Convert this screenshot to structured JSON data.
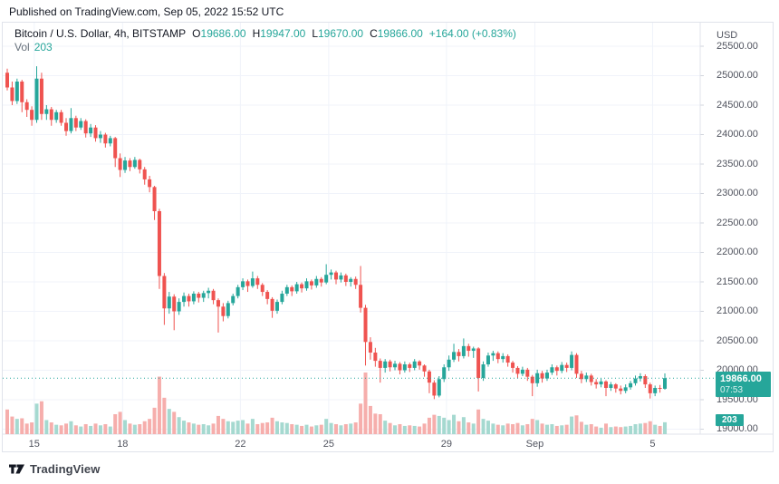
{
  "header": {
    "published": "Published on TradingView.com, Sep 05, 2022 15:52 UTC"
  },
  "legend": {
    "symbol": "Bitcoin / U.S. Dollar, 4h, BITSTAMP",
    "open_label": "O",
    "open": "19686.00",
    "high_label": "H",
    "high": "19947.00",
    "low_label": "L",
    "low": "19670.00",
    "close_label": "C",
    "close": "19866.00",
    "change": "+164.00 (+0.83%)",
    "vol_label": "Vol",
    "vol": "203"
  },
  "price_axis": {
    "unit": "USD",
    "last_price": "19866.00",
    "countdown": "07:53",
    "last_volume": "203"
  },
  "footer": {
    "brand": "TradingView"
  },
  "colors": {
    "up": "#26a69a",
    "down": "#ef5350",
    "vol_up": "#a5d9d0",
    "vol_down": "#f6aeac",
    "grid": "#f0f3fa",
    "border": "#e0e3eb",
    "tick": "#d1d4dc",
    "axis_text": "#50535e",
    "last_line": "#26a69a"
  },
  "chart_data": {
    "type": "candlestick",
    "title": "Bitcoin / U.S. Dollar",
    "exchange": "BITSTAMP",
    "interval": "4h",
    "unit": "USD",
    "ylim": [
      19000,
      25500
    ],
    "y_step": 500,
    "grid": true,
    "last_price": 19866.0,
    "last_volume": 203,
    "x_ticks": [
      {
        "index": 6,
        "label": "15"
      },
      {
        "index": 24,
        "label": "18"
      },
      {
        "index": 48,
        "label": "22"
      },
      {
        "index": 66,
        "label": "25"
      },
      {
        "index": 90,
        "label": "29"
      },
      {
        "index": 108,
        "label": "Sep"
      },
      {
        "index": 132,
        "label": "5"
      }
    ],
    "candles_format": [
      "open",
      "high",
      "low",
      "close",
      "volume"
    ],
    "candles": [
      [
        25050,
        25120,
        24750,
        24800,
        420
      ],
      [
        24800,
        24900,
        24500,
        24570,
        300
      ],
      [
        24570,
        24950,
        24520,
        24900,
        260
      ],
      [
        24900,
        24930,
        24380,
        24550,
        270
      ],
      [
        24550,
        24600,
        24300,
        24420,
        180
      ],
      [
        24420,
        24480,
        24150,
        24250,
        200
      ],
      [
        24250,
        25160,
        24200,
        24950,
        520
      ],
      [
        24950,
        25050,
        24250,
        24350,
        560
      ],
      [
        24350,
        24500,
        24250,
        24430,
        240
      ],
      [
        24430,
        24470,
        24150,
        24250,
        200
      ],
      [
        24250,
        24420,
        24200,
        24380,
        160
      ],
      [
        24380,
        24420,
        24150,
        24200,
        150
      ],
      [
        24200,
        24280,
        23980,
        24060,
        180
      ],
      [
        24060,
        24450,
        24020,
        24280,
        220
      ],
      [
        24280,
        24320,
        24060,
        24120,
        150
      ],
      [
        24120,
        24280,
        24080,
        24230,
        130
      ],
      [
        24230,
        24260,
        23950,
        24020,
        170
      ],
      [
        24020,
        24180,
        23960,
        24120,
        140
      ],
      [
        24120,
        24160,
        23880,
        23940,
        180
      ],
      [
        23940,
        24060,
        23860,
        24000,
        150
      ],
      [
        24000,
        24030,
        23780,
        23850,
        170
      ],
      [
        23850,
        23980,
        23800,
        23940,
        130
      ],
      [
        23940,
        23960,
        23450,
        23600,
        340
      ],
      [
        23600,
        23680,
        23280,
        23400,
        380
      ],
      [
        23400,
        23620,
        23350,
        23560,
        240
      ],
      [
        23560,
        23600,
        23380,
        23450,
        180
      ],
      [
        23450,
        23620,
        23420,
        23570,
        160
      ],
      [
        23570,
        23590,
        23340,
        23410,
        170
      ],
      [
        23410,
        23450,
        23150,
        23240,
        220
      ],
      [
        23240,
        23300,
        23020,
        23110,
        260
      ],
      [
        23110,
        23130,
        22550,
        22700,
        450
      ],
      [
        22700,
        22740,
        21380,
        21600,
        980
      ],
      [
        21600,
        21650,
        20770,
        21050,
        620
      ],
      [
        21050,
        21330,
        20960,
        21250,
        430
      ],
      [
        21250,
        21290,
        20680,
        21000,
        380
      ],
      [
        21000,
        21220,
        20940,
        21160,
        290
      ],
      [
        21160,
        21320,
        21080,
        21260,
        230
      ],
      [
        21260,
        21300,
        21080,
        21170,
        200
      ],
      [
        21170,
        21340,
        21120,
        21300,
        180
      ],
      [
        21300,
        21330,
        21150,
        21230,
        160
      ],
      [
        21230,
        21350,
        21160,
        21310,
        170
      ],
      [
        21310,
        21400,
        21220,
        21350,
        150
      ],
      [
        21350,
        21380,
        21120,
        21190,
        180
      ],
      [
        21190,
        21220,
        20640,
        21080,
        310
      ],
      [
        21080,
        21140,
        20830,
        20920,
        260
      ],
      [
        20920,
        21180,
        20880,
        21140,
        220
      ],
      [
        21140,
        21300,
        21100,
        21260,
        210
      ],
      [
        21260,
        21450,
        21220,
        21410,
        230
      ],
      [
        21410,
        21560,
        21360,
        21510,
        240
      ],
      [
        21510,
        21540,
        21330,
        21430,
        180
      ],
      [
        21430,
        21675,
        21400,
        21560,
        260
      ],
      [
        21560,
        21600,
        21380,
        21450,
        170
      ],
      [
        21450,
        21480,
        21260,
        21330,
        190
      ],
      [
        21330,
        21360,
        21120,
        21210,
        200
      ],
      [
        21210,
        21240,
        20890,
        21010,
        280
      ],
      [
        21010,
        21200,
        20960,
        21160,
        220
      ],
      [
        21160,
        21350,
        21120,
        21300,
        200
      ],
      [
        21300,
        21450,
        21260,
        21410,
        190
      ],
      [
        21410,
        21440,
        21260,
        21340,
        170
      ],
      [
        21340,
        21500,
        21300,
        21460,
        160
      ],
      [
        21460,
        21490,
        21320,
        21390,
        140
      ],
      [
        21390,
        21560,
        21350,
        21510,
        160
      ],
      [
        21510,
        21540,
        21370,
        21440,
        130
      ],
      [
        21440,
        21600,
        21400,
        21550,
        150
      ],
      [
        21550,
        21580,
        21420,
        21490,
        160
      ],
      [
        21490,
        21800,
        21460,
        21620,
        260
      ],
      [
        21620,
        21710,
        21540,
        21660,
        190
      ],
      [
        21660,
        21690,
        21460,
        21540,
        170
      ],
      [
        21540,
        21660,
        21490,
        21610,
        150
      ],
      [
        21610,
        21640,
        21430,
        21500,
        170
      ],
      [
        21500,
        21580,
        21420,
        21550,
        180
      ],
      [
        21550,
        21590,
        21380,
        21450,
        200
      ],
      [
        21450,
        21770,
        20980,
        21060,
        520
      ],
      [
        21060,
        21110,
        20080,
        20480,
        1050
      ],
      [
        20480,
        20560,
        20180,
        20300,
        480
      ],
      [
        20300,
        20380,
        20060,
        20160,
        350
      ],
      [
        20160,
        20200,
        19790,
        20040,
        340
      ],
      [
        20040,
        20190,
        19960,
        20150,
        230
      ],
      [
        20150,
        20180,
        19980,
        20050,
        190
      ],
      [
        20050,
        20160,
        20000,
        20110,
        150
      ],
      [
        20110,
        20140,
        19930,
        20000,
        170
      ],
      [
        20000,
        20150,
        19960,
        20100,
        140
      ],
      [
        20100,
        20130,
        19970,
        20040,
        150
      ],
      [
        20040,
        20190,
        20000,
        20150,
        140
      ],
      [
        20150,
        20170,
        20010,
        20080,
        130
      ],
      [
        20080,
        20100,
        19890,
        19980,
        180
      ],
      [
        19980,
        20010,
        19610,
        19790,
        280
      ],
      [
        19790,
        19830,
        19510,
        19570,
        330
      ],
      [
        19570,
        19900,
        19540,
        19850,
        310
      ],
      [
        19850,
        20100,
        19800,
        20050,
        280
      ],
      [
        20050,
        20250,
        19990,
        20180,
        240
      ],
      [
        20180,
        20450,
        20140,
        20310,
        330
      ],
      [
        20310,
        20360,
        20150,
        20240,
        220
      ],
      [
        20240,
        20540,
        20200,
        20410,
        290
      ],
      [
        20410,
        20450,
        20230,
        20330,
        200
      ],
      [
        20330,
        20400,
        20210,
        20370,
        180
      ],
      [
        20370,
        20390,
        19640,
        19870,
        420
      ],
      [
        19870,
        20150,
        19820,
        20100,
        260
      ],
      [
        20100,
        20300,
        20060,
        20250,
        230
      ],
      [
        20250,
        20330,
        20160,
        20290,
        180
      ],
      [
        20290,
        20320,
        20120,
        20190,
        160
      ],
      [
        20190,
        20290,
        20130,
        20240,
        150
      ],
      [
        20240,
        20270,
        20060,
        20130,
        180
      ],
      [
        20130,
        20160,
        19960,
        20040,
        170
      ],
      [
        20040,
        20070,
        19860,
        19940,
        190
      ],
      [
        19940,
        20060,
        19900,
        20010,
        150
      ],
      [
        20010,
        20040,
        19820,
        19890,
        170
      ],
      [
        19890,
        19920,
        19560,
        19780,
        260
      ],
      [
        19780,
        20010,
        19720,
        19950,
        240
      ],
      [
        19950,
        19990,
        19790,
        19860,
        180
      ],
      [
        19860,
        20010,
        19820,
        19960,
        160
      ],
      [
        19960,
        20100,
        19920,
        20050,
        170
      ],
      [
        20050,
        20080,
        19910,
        19990,
        140
      ],
      [
        19990,
        20140,
        19950,
        20090,
        150
      ],
      [
        20090,
        20130,
        19970,
        20040,
        160
      ],
      [
        20040,
        20320,
        20000,
        20260,
        300
      ],
      [
        20260,
        20290,
        19870,
        19940,
        320
      ],
      [
        19940,
        19990,
        19780,
        19850,
        210
      ],
      [
        19850,
        19960,
        19800,
        19910,
        160
      ],
      [
        19910,
        19940,
        19740,
        19800,
        170
      ],
      [
        19800,
        19850,
        19690,
        19760,
        130
      ],
      [
        19760,
        19860,
        19710,
        19810,
        110
      ],
      [
        19810,
        19830,
        19560,
        19700,
        180
      ],
      [
        19700,
        19800,
        19650,
        19760,
        120
      ],
      [
        19760,
        19780,
        19620,
        19690,
        130
      ],
      [
        19690,
        19740,
        19590,
        19650,
        120
      ],
      [
        19650,
        19760,
        19610,
        19710,
        130
      ],
      [
        19710,
        19820,
        19670,
        19780,
        140
      ],
      [
        19780,
        19910,
        19740,
        19860,
        170
      ],
      [
        19860,
        19950,
        19810,
        19900,
        180
      ],
      [
        19900,
        19930,
        19700,
        19760,
        190
      ],
      [
        19760,
        19790,
        19520,
        19610,
        220
      ],
      [
        19610,
        19740,
        19560,
        19700,
        160
      ],
      [
        19700,
        19750,
        19620,
        19686,
        140
      ],
      [
        19686,
        19947,
        19670,
        19866,
        203
      ]
    ]
  }
}
